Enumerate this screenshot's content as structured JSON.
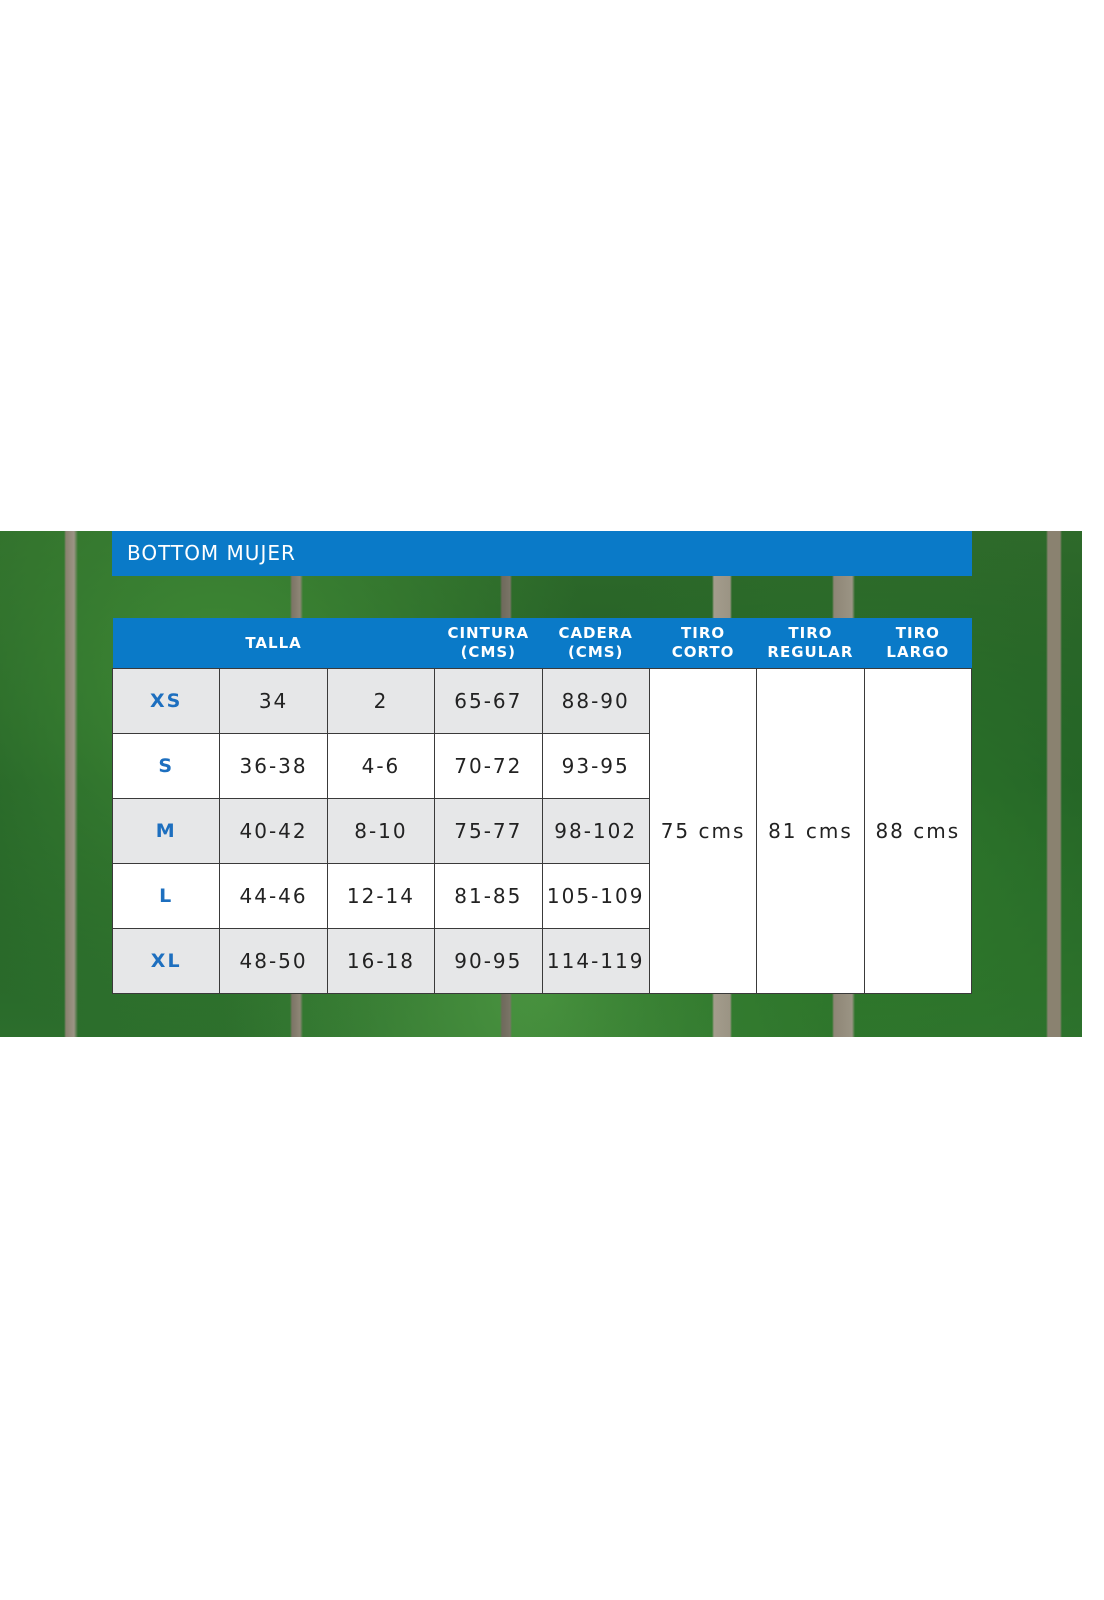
{
  "title": "BOTTOM MUJER",
  "headers": {
    "talla": "TALLA",
    "cintura": [
      "CINTURA",
      "(CMS)"
    ],
    "cadera": [
      "CADERA",
      "(CMS)"
    ],
    "tiro_corto": [
      "TIRO",
      "CORTO"
    ],
    "tiro_regular": [
      "TIRO",
      "REGULAR"
    ],
    "tiro_largo": [
      "TIRO",
      "LARGO"
    ]
  },
  "rows": [
    {
      "size": "XS",
      "eu": "34",
      "us": "2",
      "cintura": "65-67",
      "cadera": "88-90"
    },
    {
      "size": "S",
      "eu": "36-38",
      "us": "4-6",
      "cintura": "70-72",
      "cadera": "93-95"
    },
    {
      "size": "M",
      "eu": "40-42",
      "us": "8-10",
      "cintura": "75-77",
      "cadera": "98-102"
    },
    {
      "size": "L",
      "eu": "44-46",
      "us": "12-14",
      "cintura": "81-85",
      "cadera": "105-109"
    },
    {
      "size": "XL",
      "eu": "48-50",
      "us": "16-18",
      "cintura": "90-95",
      "cadera": "114-119"
    }
  ],
  "tiro": {
    "corto": "75 cms",
    "regular": "81 cms",
    "largo": "88 cms"
  },
  "colors": {
    "header_blue": "#0a7ac8",
    "size_blue": "#1d6fbf",
    "row_gray": "#e6e7e8"
  }
}
